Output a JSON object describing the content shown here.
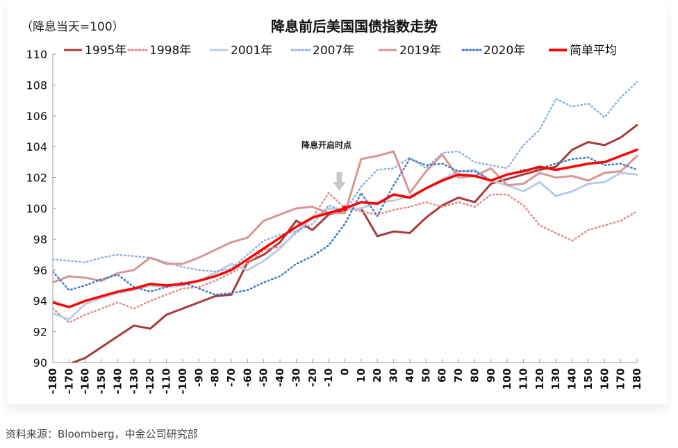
{
  "chart_data": {
    "type": "line",
    "title": "降息前后美国国债指数走势",
    "subtitle": "（降息当天=100）",
    "xlabel": "",
    "ylabel": "",
    "x": [
      -180,
      -170,
      -160,
      -150,
      -140,
      -130,
      -120,
      -110,
      -100,
      -90,
      -80,
      -70,
      -60,
      -50,
      -40,
      -30,
      -20,
      -10,
      0,
      10,
      20,
      30,
      40,
      50,
      60,
      70,
      80,
      90,
      100,
      110,
      120,
      130,
      140,
      150,
      160,
      170,
      180
    ],
    "xlim": [
      -180,
      180
    ],
    "ylim": [
      90,
      110
    ],
    "yticks": [
      90,
      92,
      94,
      96,
      98,
      100,
      102,
      104,
      106,
      108,
      110
    ],
    "legend": "top",
    "grid": false,
    "annotation": {
      "text": "降息开启时点",
      "x": 0
    },
    "series": [
      {
        "name": "1995年",
        "color": "#a83a3a",
        "style": "solid",
        "values": [
          89.8,
          89.9,
          90.3,
          91.0,
          91.7,
          92.4,
          92.2,
          93.1,
          93.5,
          93.9,
          94.3,
          94.4,
          96.5,
          97.0,
          97.8,
          99.2,
          98.6,
          99.6,
          99.9,
          100.0,
          98.2,
          98.5,
          98.4,
          99.4,
          100.2,
          100.7,
          100.4,
          101.6,
          101.9,
          102.2,
          102.5,
          102.7,
          103.8,
          104.3,
          104.1,
          104.6,
          105.4
        ]
      },
      {
        "name": "1998年",
        "color": "#e08a8a",
        "style": "dotted",
        "values": [
          93.5,
          92.6,
          93.1,
          93.5,
          93.9,
          93.5,
          94.0,
          94.4,
          94.8,
          94.9,
          95.3,
          95.8,
          96.4,
          97.3,
          97.5,
          98.4,
          99.4,
          101.0,
          100.0,
          99.8,
          99.6,
          99.9,
          100.1,
          100.4,
          100.1,
          100.4,
          100.1,
          100.9,
          100.9,
          100.2,
          98.9,
          98.4,
          97.9,
          98.6,
          98.9,
          99.2,
          99.8
        ]
      },
      {
        "name": "2001年",
        "color": "#b8cce4",
        "style": "solid",
        "values": [
          93.2,
          92.8,
          93.8,
          94.2,
          94.5,
          94.7,
          95.0,
          94.9,
          95.0,
          95.3,
          95.8,
          96.4,
          96.0,
          96.6,
          97.4,
          98.5,
          99.4,
          100.0,
          99.9,
          100.0,
          100.4,
          100.5,
          100.8,
          101.3,
          101.9,
          102.4,
          102.5,
          101.8,
          101.5,
          101.1,
          101.7,
          100.8,
          101.1,
          101.6,
          101.7,
          102.3,
          102.2
        ]
      },
      {
        "name": "2007年",
        "color": "#8fb0dc",
        "style": "dotted",
        "values": [
          96.7,
          96.6,
          96.5,
          96.8,
          97.0,
          96.9,
          96.8,
          96.5,
          96.2,
          96.0,
          95.9,
          96.1,
          97.0,
          97.9,
          98.3,
          98.5,
          99.0,
          100.2,
          99.8,
          101.4,
          102.5,
          102.6,
          103.3,
          102.6,
          103.6,
          103.7,
          103.0,
          102.8,
          102.6,
          104.1,
          105.1,
          107.1,
          106.6,
          106.8,
          105.9,
          107.2,
          108.2
        ]
      },
      {
        "name": "2019年",
        "color": "#d99594",
        "style": "solid",
        "values": [
          95.2,
          95.6,
          95.5,
          95.3,
          95.8,
          96.0,
          96.8,
          96.4,
          96.4,
          96.8,
          97.3,
          97.8,
          98.1,
          99.2,
          99.6,
          100.0,
          100.1,
          99.7,
          99.7,
          103.2,
          103.4,
          103.7,
          101.0,
          102.4,
          103.5,
          102.0,
          102.1,
          102.6,
          101.5,
          101.6,
          102.3,
          102.0,
          102.1,
          101.8,
          102.3,
          102.4,
          103.4
        ]
      },
      {
        "name": "2020年",
        "color": "#3a78c8",
        "style": "dotted",
        "values": [
          95.9,
          94.7,
          95.0,
          95.4,
          95.7,
          94.9,
          94.6,
          94.9,
          95.2,
          94.8,
          94.4,
          94.5,
          94.7,
          95.2,
          95.6,
          96.4,
          96.9,
          97.6,
          99.0,
          101.0,
          99.5,
          101.5,
          103.2,
          102.8,
          102.9,
          102.4,
          102.4,
          101.8,
          102.2,
          102.5,
          102.6,
          102.9,
          103.2,
          103.3,
          102.8,
          102.9,
          102.5
        ]
      },
      {
        "name": "简单平均",
        "color": "#ff0000",
        "style": "bold",
        "values": [
          93.9,
          93.6,
          94.0,
          94.3,
          94.6,
          94.8,
          95.1,
          95.0,
          95.1,
          95.3,
          95.6,
          96.0,
          96.7,
          97.4,
          98.1,
          98.8,
          99.4,
          99.7,
          100.0,
          100.4,
          100.3,
          100.9,
          100.7,
          101.3,
          101.8,
          102.2,
          102.1,
          101.8,
          102.2,
          102.4,
          102.7,
          102.5,
          102.7,
          102.9,
          103.0,
          103.4,
          103.8
        ]
      }
    ]
  },
  "source": "资料来源：Bloomberg，中金公司研究部"
}
